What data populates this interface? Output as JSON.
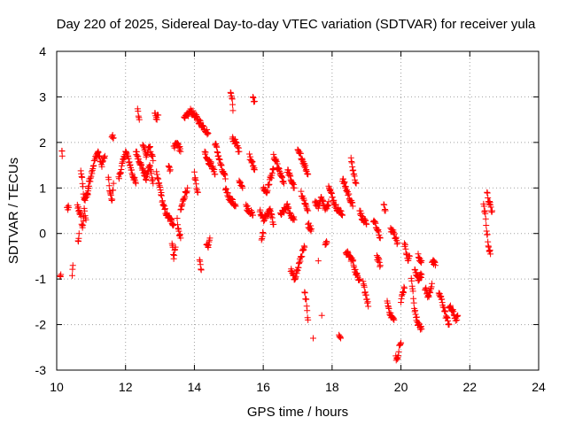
{
  "chart_data": {
    "type": "scatter",
    "title": "Day 220 of 2025, Sidereal Day-to-day VTEC variation (SDTVAR) for receiver yula",
    "xlabel": "GPS time / hours",
    "ylabel": "SDTVAR / TECUs",
    "xlim": [
      10,
      24
    ],
    "ylim": [
      -3,
      4
    ],
    "xticks": [
      10,
      12,
      14,
      16,
      18,
      20,
      22,
      24
    ],
    "yticks": [
      -3,
      -2,
      -1,
      0,
      1,
      2,
      3,
      4
    ],
    "xtick_labels": [
      "10",
      "12",
      "14",
      "16",
      "18",
      "20",
      "22",
      "24"
    ],
    "ytick_labels": [
      "-3",
      "-2",
      "-1",
      "0",
      "1",
      "2",
      "3",
      "4"
    ],
    "grid": true,
    "marker": "plus",
    "series": [
      {
        "name": "SDTVAR",
        "color": "#ff0000",
        "tracks": [
          [
            [
              10.1,
              -0.95
            ],
            [
              10.12,
              -0.9
            ]
          ],
          [
            [
              10.15,
              1.8
            ],
            [
              10.16,
              1.7
            ]
          ],
          [
            [
              10.3,
              0.55
            ],
            [
              10.35,
              0.57
            ]
          ],
          [
            [
              10.45,
              -0.95
            ],
            [
              10.47,
              -0.7
            ]
          ],
          [
            [
              10.6,
              0.6
            ],
            [
              10.7,
              0.4
            ],
            [
              10.75,
              0.1
            ],
            [
              10.8,
              0.5
            ],
            [
              10.85,
              0.3
            ]
          ],
          [
            [
              10.62,
              -0.2
            ],
            [
              10.65,
              0.0
            ]
          ],
          [
            [
              10.7,
              1.4
            ],
            [
              10.75,
              1.1
            ],
            [
              10.8,
              0.7
            ],
            [
              10.9,
              0.9
            ],
            [
              10.95,
              1.2
            ]
          ],
          [
            [
              10.9,
              0.9
            ],
            [
              11.0,
              1.3
            ],
            [
              11.1,
              1.6
            ],
            [
              11.2,
              1.8
            ],
            [
              11.3,
              1.5
            ],
            [
              11.4,
              1.7
            ]
          ],
          [
            [
              11.5,
              1.2
            ],
            [
              11.55,
              0.9
            ],
            [
              11.6,
              0.7
            ],
            [
              11.65,
              1.1
            ]
          ],
          [
            [
              11.6,
              2.15
            ],
            [
              11.65,
              2.1
            ]
          ],
          [
            [
              11.8,
              1.2
            ],
            [
              11.9,
              1.5
            ],
            [
              12.0,
              1.8
            ],
            [
              12.1,
              1.6
            ],
            [
              12.2,
              1.3
            ],
            [
              12.3,
              1.1
            ]
          ],
          [
            [
              12.35,
              2.7
            ],
            [
              12.4,
              2.5
            ]
          ],
          [
            [
              12.3,
              1.8
            ],
            [
              12.4,
              1.6
            ],
            [
              12.5,
              1.4
            ],
            [
              12.6,
              1.2
            ],
            [
              12.7,
              1.5
            ],
            [
              12.8,
              1.1
            ]
          ],
          [
            [
              12.5,
              2.0
            ],
            [
              12.6,
              1.7
            ],
            [
              12.7,
              1.9
            ],
            [
              12.8,
              1.6
            ]
          ],
          [
            [
              12.85,
              2.7
            ],
            [
              12.9,
              2.5
            ],
            [
              12.95,
              2.6
            ]
          ],
          [
            [
              12.9,
              1.3
            ],
            [
              13.0,
              1.0
            ],
            [
              13.1,
              0.6
            ],
            [
              13.2,
              0.4
            ],
            [
              13.3,
              0.3
            ],
            [
              13.4,
              0.2
            ]
          ],
          [
            [
              13.25,
              1.5
            ],
            [
              13.3,
              1.4
            ]
          ],
          [
            [
              13.35,
              -0.2
            ],
            [
              13.4,
              -0.5
            ],
            [
              13.45,
              -0.3
            ]
          ],
          [
            [
              13.4,
              1.9
            ],
            [
              13.5,
              2.0
            ],
            [
              13.6,
              1.8
            ]
          ],
          [
            [
              13.5,
              0.3
            ],
            [
              13.55,
              0.0
            ],
            [
              13.6,
              -0.1
            ]
          ],
          [
            [
              13.6,
              0.5
            ],
            [
              13.7,
              0.8
            ],
            [
              13.8,
              1.0
            ]
          ],
          [
            [
              13.7,
              2.5
            ],
            [
              13.8,
              2.6
            ],
            [
              13.9,
              2.7
            ],
            [
              14.0,
              2.6
            ],
            [
              14.1,
              2.5
            ],
            [
              14.2,
              2.4
            ],
            [
              14.3,
              2.3
            ],
            [
              14.4,
              2.2
            ]
          ],
          [
            [
              14.0,
              1.3
            ],
            [
              14.05,
              1.1
            ],
            [
              14.1,
              0.9
            ]
          ],
          [
            [
              14.15,
              -0.6
            ],
            [
              14.2,
              -0.8
            ]
          ],
          [
            [
              14.3,
              1.8
            ],
            [
              14.4,
              1.6
            ],
            [
              14.5,
              1.5
            ],
            [
              14.6,
              1.3
            ]
          ],
          [
            [
              14.35,
              -0.2
            ],
            [
              14.4,
              -0.3
            ],
            [
              14.45,
              -0.1
            ]
          ],
          [
            [
              14.6,
              2.0
            ],
            [
              14.7,
              1.7
            ],
            [
              14.8,
              1.4
            ],
            [
              14.9,
              1.2
            ]
          ],
          [
            [
              14.9,
              1.0
            ],
            [
              15.0,
              0.8
            ],
            [
              15.1,
              0.7
            ],
            [
              15.2,
              0.6
            ]
          ],
          [
            [
              15.05,
              3.1
            ],
            [
              15.1,
              2.9
            ],
            [
              15.12,
              2.7
            ]
          ],
          [
            [
              15.1,
              2.1
            ],
            [
              15.2,
              2.0
            ],
            [
              15.3,
              1.8
            ]
          ],
          [
            [
              15.3,
              1.2
            ],
            [
              15.4,
              1.0
            ]
          ],
          [
            [
              15.5,
              0.6
            ],
            [
              15.6,
              0.5
            ],
            [
              15.7,
              0.4
            ]
          ],
          [
            [
              15.6,
              1.7
            ],
            [
              15.7,
              1.5
            ],
            [
              15.75,
              1.4
            ]
          ],
          [
            [
              15.7,
              3.0
            ],
            [
              15.75,
              2.9
            ]
          ],
          [
            [
              15.9,
              0.5
            ],
            [
              16.0,
              0.3
            ],
            [
              16.1,
              0.4
            ],
            [
              16.2,
              0.5
            ],
            [
              16.3,
              0.2
            ]
          ],
          [
            [
              15.95,
              -0.1
            ],
            [
              16.0,
              0.0
            ]
          ],
          [
            [
              16.0,
              1.0
            ],
            [
              16.1,
              0.9
            ],
            [
              16.2,
              1.2
            ],
            [
              16.3,
              1.4
            ]
          ],
          [
            [
              16.3,
              1.7
            ],
            [
              16.4,
              1.5
            ],
            [
              16.5,
              1.3
            ],
            [
              16.6,
              1.1
            ]
          ],
          [
            [
              16.5,
              0.4
            ],
            [
              16.6,
              0.5
            ],
            [
              16.7,
              0.6
            ],
            [
              16.8,
              0.4
            ],
            [
              16.9,
              0.3
            ]
          ],
          [
            [
              16.7,
              1.4
            ],
            [
              16.8,
              1.2
            ],
            [
              16.9,
              1.0
            ]
          ],
          [
            [
              16.8,
              -0.8
            ],
            [
              16.9,
              -1.0
            ],
            [
              17.0,
              -0.8
            ],
            [
              17.1,
              -0.5
            ],
            [
              17.2,
              -0.3
            ]
          ],
          [
            [
              17.0,
              1.8
            ],
            [
              17.1,
              1.7
            ],
            [
              17.2,
              1.5
            ],
            [
              17.3,
              1.3
            ]
          ],
          [
            [
              17.1,
              0.9
            ],
            [
              17.2,
              0.7
            ],
            [
              17.3,
              0.5
            ]
          ],
          [
            [
              17.2,
              -1.3
            ],
            [
              17.25,
              -1.5
            ],
            [
              17.3,
              -1.9
            ]
          ],
          [
            [
              17.3,
              0.2
            ],
            [
              17.4,
              0.1
            ]
          ],
          [
            [
              17.45,
              -2.3
            ]
          ],
          [
            [
              17.5,
              0.7
            ],
            [
              17.6,
              0.6
            ],
            [
              17.7,
              0.8
            ],
            [
              17.8,
              0.5
            ],
            [
              17.9,
              0.7
            ]
          ],
          [
            [
              17.6,
              -0.6
            ]
          ],
          [
            [
              17.7,
              -1.8
            ]
          ],
          [
            [
              17.8,
              -0.2
            ],
            [
              17.85,
              -0.2
            ]
          ],
          [
            [
              17.9,
              1.1
            ],
            [
              18.0,
              0.8
            ],
            [
              18.1,
              0.6
            ],
            [
              18.2,
              0.5
            ],
            [
              18.3,
              0.4
            ]
          ],
          [
            [
              18.2,
              -2.2
            ],
            [
              18.25,
              -2.3
            ]
          ],
          [
            [
              18.3,
              1.2
            ],
            [
              18.4,
              1.0
            ],
            [
              18.5,
              0.8
            ],
            [
              18.6,
              0.6
            ]
          ],
          [
            [
              18.4,
              -0.4
            ],
            [
              18.5,
              -0.5
            ],
            [
              18.6,
              -0.6
            ],
            [
              18.7,
              -0.9
            ],
            [
              18.8,
              -1.0
            ]
          ],
          [
            [
              18.55,
              1.7
            ],
            [
              18.6,
              1.4
            ],
            [
              18.7,
              1.1
            ]
          ],
          [
            [
              18.8,
              0.5
            ],
            [
              18.9,
              0.3
            ],
            [
              19.0,
              0.2
            ]
          ],
          [
            [
              18.9,
              -1.1
            ],
            [
              19.0,
              -1.4
            ],
            [
              19.05,
              -1.6
            ]
          ],
          [
            [
              19.2,
              0.3
            ],
            [
              19.3,
              0.1
            ],
            [
              19.4,
              -0.1
            ]
          ],
          [
            [
              19.3,
              -0.5
            ],
            [
              19.4,
              -0.7
            ]
          ],
          [
            [
              19.5,
              0.6
            ],
            [
              19.55,
              0.5
            ]
          ],
          [
            [
              19.6,
              -1.5
            ],
            [
              19.7,
              -1.8
            ],
            [
              19.8,
              -1.9
            ]
          ],
          [
            [
              19.7,
              0.1
            ],
            [
              19.8,
              0.0
            ],
            [
              19.9,
              -0.2
            ]
          ],
          [
            [
              19.85,
              -2.7
            ],
            [
              19.9,
              -2.8
            ],
            [
              19.95,
              -2.5
            ],
            [
              20.0,
              -2.4
            ]
          ],
          [
            [
              20.0,
              -1.5
            ],
            [
              20.05,
              -1.3
            ],
            [
              20.1,
              -1.2
            ]
          ],
          [
            [
              20.1,
              -0.2
            ],
            [
              20.15,
              -0.4
            ],
            [
              20.2,
              -0.6
            ],
            [
              20.25,
              -0.5
            ]
          ],
          [
            [
              20.3,
              -1.0
            ],
            [
              20.35,
              -1.3
            ],
            [
              20.4,
              -1.7
            ],
            [
              20.5,
              -2.0
            ],
            [
              20.6,
              -2.1
            ]
          ],
          [
            [
              20.4,
              -0.8
            ],
            [
              20.5,
              -1.0
            ],
            [
              20.6,
              -0.9
            ]
          ],
          [
            [
              20.5,
              -0.5
            ],
            [
              20.6,
              -0.6
            ]
          ],
          [
            [
              20.7,
              -1.2
            ],
            [
              20.8,
              -1.4
            ],
            [
              20.9,
              -1.1
            ]
          ],
          [
            [
              20.9,
              -0.6
            ],
            [
              21.0,
              -0.7
            ]
          ],
          [
            [
              21.1,
              -1.3
            ],
            [
              21.2,
              -1.5
            ],
            [
              21.3,
              -1.8
            ],
            [
              21.4,
              -2.0
            ]
          ],
          [
            [
              21.4,
              -1.6
            ],
            [
              21.5,
              -1.7
            ],
            [
              21.6,
              -1.9
            ],
            [
              21.65,
              -1.8
            ]
          ],
          [
            [
              22.4,
              0.6
            ],
            [
              22.45,
              0.4
            ],
            [
              22.5,
              0.0
            ],
            [
              22.55,
              -0.3
            ],
            [
              22.6,
              -0.45
            ]
          ],
          [
            [
              22.5,
              0.9
            ],
            [
              22.55,
              0.7
            ],
            [
              22.6,
              0.6
            ],
            [
              22.65,
              0.5
            ]
          ]
        ]
      }
    ]
  }
}
